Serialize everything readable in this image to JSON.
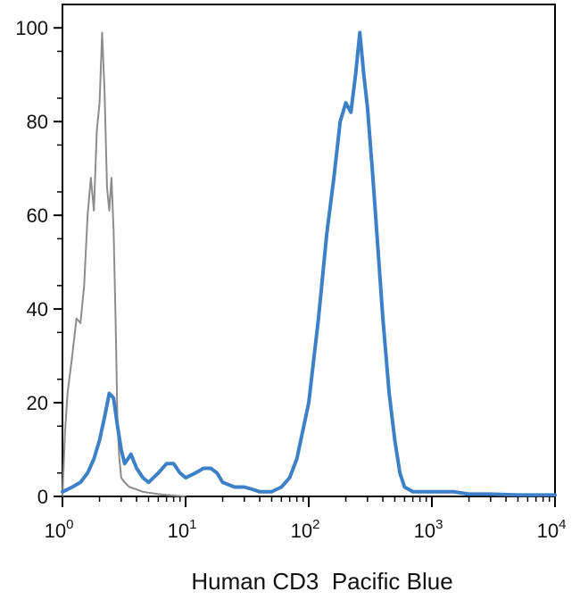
{
  "chart_data": {
    "type": "line",
    "title": "",
    "xlabel": "Human CD3  Pacific Blue",
    "ylabel": "",
    "xscale": "log",
    "xlim": [
      1,
      10000
    ],
    "ylim": [
      0,
      105
    ],
    "grid": false,
    "legend": "none",
    "x_ticks": [
      {
        "base": "10",
        "exp": "0"
      },
      {
        "base": "10",
        "exp": "1"
      },
      {
        "base": "10",
        "exp": "2"
      },
      {
        "base": "10",
        "exp": "3"
      },
      {
        "base": "10",
        "exp": "4"
      }
    ],
    "y_ticks": [
      "0",
      "20",
      "40",
      "60",
      "80",
      "100"
    ],
    "series": [
      {
        "color": "#8c8c8c",
        "x": [
          1.0,
          1.05,
          1.1,
          1.2,
          1.3,
          1.4,
          1.5,
          1.6,
          1.7,
          1.8,
          1.9,
          2.0,
          2.1,
          2.2,
          2.3,
          2.4,
          2.5,
          2.6,
          2.7,
          2.8,
          2.9,
          3.0,
          3.2,
          3.5,
          4.0,
          4.5,
          5.0,
          6.0,
          7.0,
          8.0,
          10.0
        ],
        "y": [
          0,
          14,
          22,
          30,
          38,
          37,
          45,
          60,
          68,
          61,
          78,
          84,
          99,
          86,
          66,
          61,
          68,
          57,
          38,
          15,
          8,
          4,
          3,
          2,
          1.5,
          1.0,
          0.8,
          0.5,
          0.3,
          0.2,
          0
        ]
      },
      {
        "color": "#3e80c8",
        "x": [
          1.0,
          1.1,
          1.2,
          1.4,
          1.6,
          1.8,
          2.0,
          2.2,
          2.4,
          2.6,
          2.8,
          3.0,
          3.2,
          3.4,
          3.6,
          4.0,
          4.5,
          5.0,
          6.0,
          7.0,
          8.0,
          9.0,
          10.0,
          12.0,
          14.0,
          16.0,
          18.0,
          20.0,
          25.0,
          30.0,
          35.0,
          40.0,
          50.0,
          60.0,
          70.0,
          80.0,
          100.0,
          120.0,
          140.0,
          160.0,
          180.0,
          200.0,
          220.0,
          240.0,
          260.0,
          280.0,
          300.0,
          330.0,
          360.0,
          400.0,
          450.0,
          500.0,
          550.0,
          600.0,
          650.0,
          700.0,
          800.0,
          900.0,
          1000.0,
          1500.0,
          2000.0,
          3000.0,
          5000.0,
          10000.0
        ],
        "y": [
          1,
          1.5,
          2,
          3,
          5,
          8,
          12,
          17,
          22,
          21,
          15,
          10,
          7,
          8,
          9,
          6,
          4,
          3,
          5,
          7,
          7,
          5,
          4,
          5,
          6,
          6,
          5,
          3,
          2,
          2,
          1.5,
          1,
          1,
          2,
          4,
          8,
          20,
          38,
          56,
          68,
          80,
          84,
          82,
          90,
          99,
          90,
          83,
          69,
          55,
          38,
          22,
          12,
          5,
          2,
          1.5,
          1.0,
          1.0,
          1.0,
          1.0,
          1.0,
          0.5,
          0.5,
          0.3,
          0.3
        ]
      }
    ]
  }
}
